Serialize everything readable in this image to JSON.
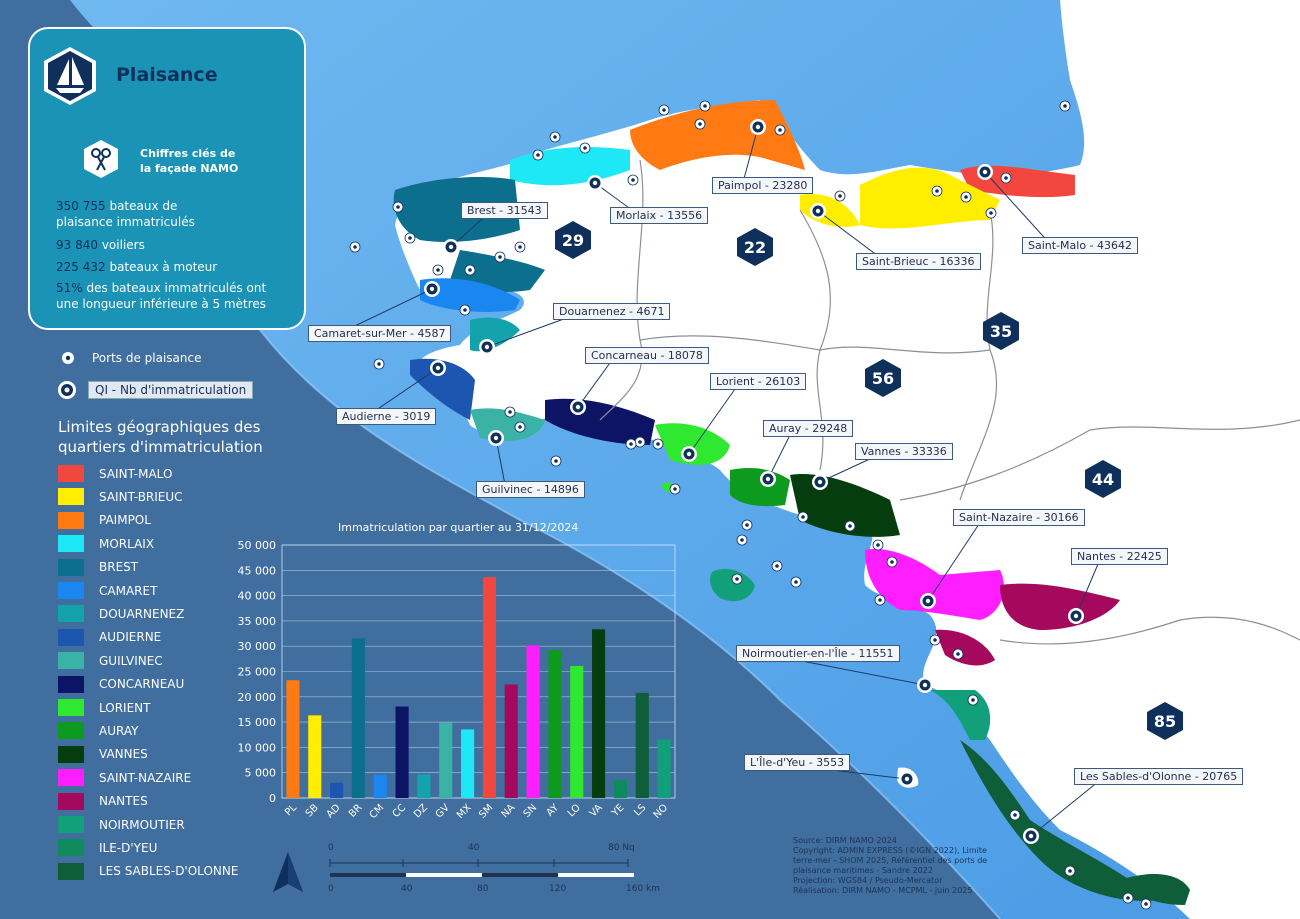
{
  "panel": {
    "title": "Plaisance",
    "subtitle_line1": "Chiffres clés de",
    "subtitle_line2": "la façade NAMO",
    "stats": [
      {
        "value": "350 755",
        "text_a": "bateaux de",
        "text_b": "plaisance immatriculés"
      },
      {
        "value": "93 840",
        "text_a": "voiliers",
        "text_b": ""
      },
      {
        "value": "225 432",
        "text_a": "bateaux à moteur",
        "text_b": ""
      },
      {
        "value": "51%",
        "text_a": "des bateaux immatriculés ont",
        "text_b": "une longueur inférieure à 5 mètres"
      }
    ]
  },
  "legend": {
    "ports": "Ports de plaisance",
    "qi": "QI - Nb d'immatriculation",
    "limits_title_1": "Limites géographiques des",
    "limits_title_2": "quartiers d'immatriculation",
    "quarters": [
      {
        "name": "SAINT-MALO",
        "color": "#f2473f"
      },
      {
        "name": "SAINT-BRIEUC",
        "color": "#ffee00"
      },
      {
        "name": "PAIMPOL",
        "color": "#ff7a12"
      },
      {
        "name": "MORLAIX",
        "color": "#1ee8f5"
      },
      {
        "name": "BREST",
        "color": "#0d6f8e"
      },
      {
        "name": "CAMARET",
        "color": "#1a86f0"
      },
      {
        "name": "DOUARNENEZ",
        "color": "#14a3ac"
      },
      {
        "name": "AUDIERNE",
        "color": "#1c56b0"
      },
      {
        "name": "GUILVINEC",
        "color": "#3bb2a6"
      },
      {
        "name": "CONCARNEAU",
        "color": "#0d1466"
      },
      {
        "name": "LORIENT",
        "color": "#2fe830"
      },
      {
        "name": "AURAY",
        "color": "#0c9a1f"
      },
      {
        "name": "VANNES",
        "color": "#063d0e"
      },
      {
        "name": "SAINT-NAZAIRE",
        "color": "#ff1eff"
      },
      {
        "name": "NANTES",
        "color": "#a5095e"
      },
      {
        "name": "NOIRMOUTIER",
        "color": "#12a07a"
      },
      {
        "name": "ILE-D'YEU",
        "color": "#0f8a5c"
      },
      {
        "name": "LES SABLES-D'OLONNE",
        "color": "#0f5e3a"
      }
    ]
  },
  "chart_data": {
    "type": "bar",
    "title": "Immatriculation par quartier au 31/12/2024",
    "categories": [
      "PL",
      "SB",
      "AD",
      "BR",
      "CM",
      "CC",
      "DZ",
      "GV",
      "MX",
      "SM",
      "NA",
      "SN",
      "AY",
      "LO",
      "VA",
      "YE",
      "LS",
      "NO"
    ],
    "values": [
      23280,
      16336,
      3019,
      31543,
      4587,
      18078,
      4671,
      14896,
      13556,
      43642,
      22425,
      30166,
      29248,
      26103,
      33336,
      3553,
      20765,
      11551
    ],
    "colors": [
      "#ff7a12",
      "#ffee00",
      "#1c56b0",
      "#0d6f8e",
      "#1a86f0",
      "#0d1466",
      "#14a3ac",
      "#3bb2a6",
      "#1ee8f5",
      "#f2473f",
      "#a5095e",
      "#ff1eff",
      "#0c9a1f",
      "#2fe830",
      "#063d0e",
      "#0f8a5c",
      "#0f5e3a",
      "#12a07a"
    ],
    "ylim": [
      0,
      50000
    ],
    "yticks": [
      "0",
      "5 000",
      "10 000",
      "15 000",
      "20 000",
      "25 000",
      "30 000",
      "35 000",
      "40 000",
      "45 000",
      "50 000"
    ],
    "grid": true
  },
  "map_labels": [
    "Brest - 31543",
    "Morlaix - 13556",
    "Paimpol - 23280",
    "Saint-Brieuc - 16336",
    "Saint-Malo - 43642",
    "Camaret-sur-Mer - 4587",
    "Douarnenez - 4671",
    "Concarneau - 18078",
    "Audierne - 3019",
    "Lorient - 26103",
    "Auray - 29248",
    "Vannes - 33336",
    "Guilvinec - 14896",
    "Saint-Nazaire - 30166",
    "Nantes - 22425",
    "Noirmoutier-en-l'Île - 11551",
    "L'Île-d'Yeu - 3553",
    "Les Sables-d'Olonne - 20765"
  ],
  "departments": [
    "29",
    "22",
    "35",
    "56",
    "44",
    "85"
  ],
  "scale": {
    "nq_0": "0",
    "nq_40": "40",
    "nq_80": "80 Nq",
    "km_0": "0",
    "km_40": "40",
    "km_80": "80",
    "km_120": "120",
    "km_160": "160 km"
  },
  "source": [
    "Source: DIRM NAMO 2024",
    "Copyright: ADMIN EXPRESS (©IGN 2022), Limite",
    "terre-mer - SHOM 2025, Référentiel des ports de",
    "plaisance maritimes - Sandre 2022",
    "Projection: WGS84 / Pseudo-Mercator",
    "Réalisation: DIRM NAMO - MCPML - juin 2025"
  ]
}
